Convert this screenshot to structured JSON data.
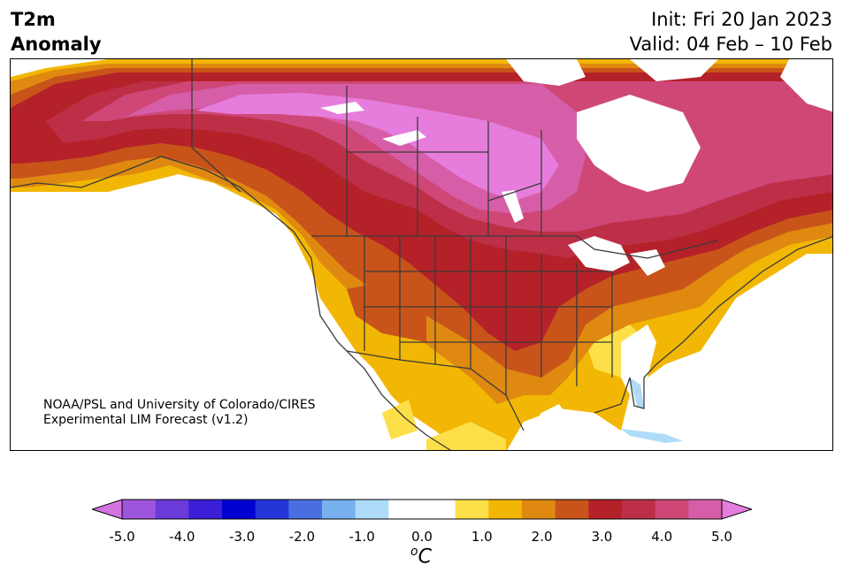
{
  "header": {
    "variable": "T2m",
    "subtitle": "Anomaly",
    "init": "Init: Fri 20 Jan 2023",
    "valid": "Valid: 04 Feb – 10 Feb"
  },
  "credit": {
    "line1": "NOAA/PSL and University of Colorado/CIRES",
    "line2": "Experimental LIM Forecast (v1.2)"
  },
  "colorbar": {
    "colors": [
      "#d473e0",
      "#9e55dd",
      "#6b3ad8",
      "#3a1fd6",
      "#0000d0",
      "#2536d8",
      "#4a6ee0",
      "#76b0ee",
      "#aedcf8",
      "#ffffff",
      "#ffffff",
      "#fde049",
      "#f2b705",
      "#df8910",
      "#c8541a",
      "#b52128",
      "#bd2f47",
      "#cf4777",
      "#d65ea8",
      "#e67ddc"
    ],
    "ticks": [
      "-5.0",
      "-4.0",
      "-3.0",
      "-2.0",
      "-1.0",
      "0.0",
      "1.0",
      "2.0",
      "3.0",
      "4.0",
      "5.0"
    ],
    "unit_base": "C",
    "unit_sup": "o"
  }
}
